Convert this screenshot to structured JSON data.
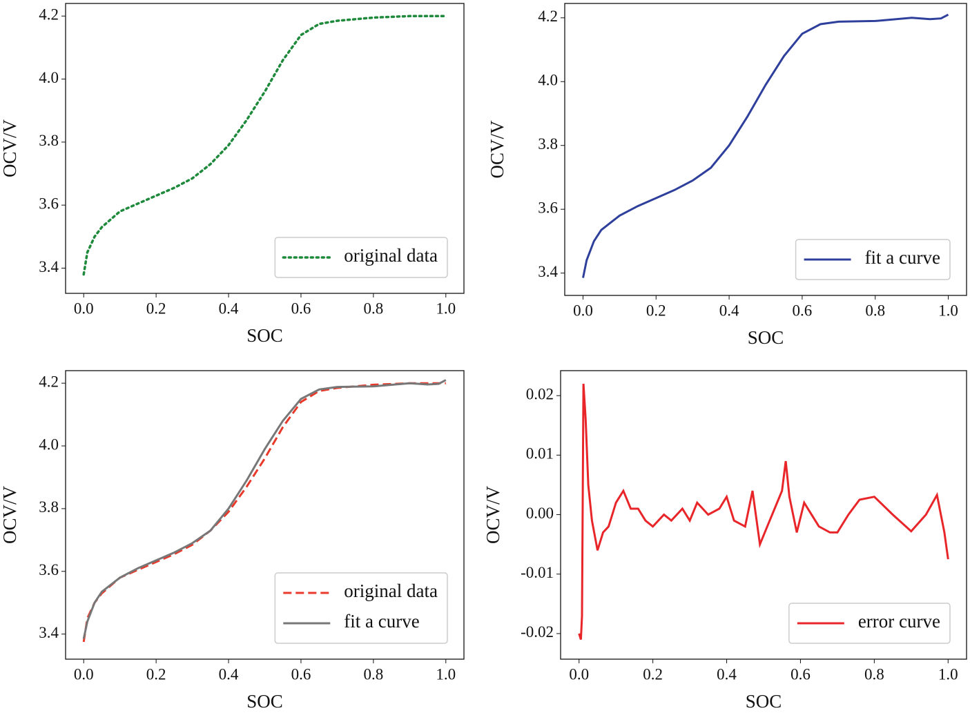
{
  "chart_data": [
    {
      "type": "line",
      "xlabel": "SOC",
      "ylabel": "OCV/V",
      "legend": "lower right",
      "x": [
        0,
        0.01,
        0.03,
        0.05,
        0.1,
        0.15,
        0.2,
        0.25,
        0.3,
        0.35,
        0.4,
        0.45,
        0.5,
        0.55,
        0.6,
        0.65,
        0.7,
        0.8,
        0.9,
        1.0
      ],
      "series": [
        {
          "name": "original data",
          "color": "#1f8a3c",
          "style": "dotted",
          "values": [
            3.38,
            3.45,
            3.5,
            3.53,
            3.58,
            3.605,
            3.63,
            3.655,
            3.685,
            3.73,
            3.79,
            3.87,
            3.96,
            4.06,
            4.14,
            4.175,
            4.185,
            4.195,
            4.2,
            4.2
          ]
        }
      ],
      "xlim": [
        -0.05,
        1.05
      ],
      "ylim": [
        3.32,
        4.24
      ],
      "xticks": [
        {
          "value": 0,
          "label": "0.0"
        },
        0.2,
        0.4,
        0.6,
        0.8,
        {
          "value": 1,
          "label": "1.0"
        }
      ],
      "yticks": [
        3.4,
        3.6,
        3.8,
        {
          "value": 4,
          "label": "4.0"
        },
        4.2
      ]
    },
    {
      "type": "line",
      "xlabel": "SOC",
      "ylabel": "OCV/V",
      "legend": "lower right",
      "x": [
        0,
        0.01,
        0.03,
        0.05,
        0.1,
        0.15,
        0.2,
        0.25,
        0.3,
        0.35,
        0.4,
        0.45,
        0.5,
        0.55,
        0.6,
        0.65,
        0.7,
        0.8,
        0.9,
        0.95,
        0.98,
        1.0
      ],
      "series": [
        {
          "name": "fit a curve",
          "color": "#2e3f9c",
          "style": "solid",
          "values": [
            3.385,
            3.44,
            3.5,
            3.535,
            3.58,
            3.61,
            3.635,
            3.66,
            3.69,
            3.73,
            3.8,
            3.89,
            3.99,
            4.08,
            4.15,
            4.18,
            4.188,
            4.19,
            4.2,
            4.196,
            4.198,
            4.21
          ]
        }
      ],
      "xlim": [
        -0.05,
        1.05
      ],
      "ylim": [
        3.33,
        4.245
      ],
      "xticks": [
        {
          "value": 0,
          "label": "0.0"
        },
        0.2,
        0.4,
        0.6,
        0.8,
        {
          "value": 1,
          "label": "1.0"
        }
      ],
      "yticks": [
        3.4,
        3.6,
        3.8,
        {
          "value": 4,
          "label": "4.0"
        },
        4.2
      ]
    },
    {
      "type": "line",
      "xlabel": "SOC",
      "ylabel": "OCV/V",
      "legend": "lower right",
      "x": [
        0,
        0.01,
        0.03,
        0.05,
        0.1,
        0.15,
        0.2,
        0.25,
        0.3,
        0.35,
        0.4,
        0.45,
        0.5,
        0.55,
        0.6,
        0.65,
        0.7,
        0.8,
        0.9,
        0.95,
        0.98,
        1.0
      ],
      "series": [
        {
          "name": "original data",
          "color": "#e8392b",
          "style": "dashed",
          "values": [
            3.375,
            3.45,
            3.5,
            3.53,
            3.58,
            3.605,
            3.63,
            3.655,
            3.685,
            3.73,
            3.79,
            3.87,
            3.96,
            4.06,
            4.14,
            4.175,
            4.185,
            4.195,
            4.2,
            4.2,
            4.2,
            4.2
          ]
        },
        {
          "name": "fit a curve",
          "color": "#777777",
          "style": "solid",
          "values": [
            3.385,
            3.44,
            3.5,
            3.535,
            3.58,
            3.61,
            3.635,
            3.66,
            3.69,
            3.73,
            3.8,
            3.89,
            3.99,
            4.08,
            4.15,
            4.18,
            4.188,
            4.19,
            4.2,
            4.196,
            4.198,
            4.21
          ]
        }
      ],
      "xlim": [
        -0.05,
        1.05
      ],
      "ylim": [
        3.32,
        4.24
      ],
      "xticks": [
        {
          "value": 0,
          "label": "0.0"
        },
        0.2,
        0.4,
        0.6,
        0.8,
        {
          "value": 1,
          "label": "1.0"
        }
      ],
      "yticks": [
        3.4,
        3.6,
        3.8,
        {
          "value": 4,
          "label": "4.0"
        },
        4.2
      ]
    },
    {
      "type": "line",
      "xlabel": "SOC",
      "ylabel": "OCV/V",
      "legend": "lower right",
      "x": [
        0,
        0.005,
        0.008,
        0.012,
        0.018,
        0.025,
        0.035,
        0.05,
        0.065,
        0.08,
        0.1,
        0.12,
        0.14,
        0.16,
        0.18,
        0.2,
        0.23,
        0.25,
        0.28,
        0.3,
        0.32,
        0.35,
        0.38,
        0.4,
        0.42,
        0.45,
        0.47,
        0.49,
        0.51,
        0.53,
        0.55,
        0.56,
        0.57,
        0.59,
        0.61,
        0.63,
        0.65,
        0.68,
        0.7,
        0.73,
        0.76,
        0.8,
        0.85,
        0.9,
        0.94,
        0.97,
        0.99,
        1.0
      ],
      "series": [
        {
          "name": "error curve",
          "color": "#e8262a",
          "style": "solid",
          "values": [
            -0.02,
            -0.021,
            -0.017,
            0.022,
            0.016,
            0.005,
            -0.001,
            -0.006,
            -0.003,
            -0.002,
            0.002,
            0.004,
            0.001,
            0.001,
            -0.001,
            -0.002,
            0.0,
            -0.001,
            0.001,
            -0.001,
            0.002,
            0.0,
            0.001,
            0.003,
            -0.001,
            -0.002,
            0.004,
            -0.005,
            -0.002,
            0.001,
            0.004,
            0.009,
            0.003,
            -0.003,
            0.002,
            0.0,
            -0.002,
            -0.003,
            -0.003,
            0.0,
            0.0025,
            0.003,
            0.0,
            -0.0028,
            0.0,
            0.0033,
            -0.003,
            -0.0075
          ]
        }
      ],
      "xlim": [
        -0.05,
        1.05
      ],
      "ylim": [
        -0.0243,
        0.0242
      ],
      "xticks": [
        {
          "value": 0,
          "label": "0.0"
        },
        0.2,
        0.4,
        0.6,
        0.8,
        {
          "value": 1,
          "label": "1.0"
        }
      ],
      "yticks": [
        -0.02,
        -0.01,
        {
          "value": 0,
          "label": "0.00"
        },
        0.01,
        0.02
      ]
    }
  ]
}
